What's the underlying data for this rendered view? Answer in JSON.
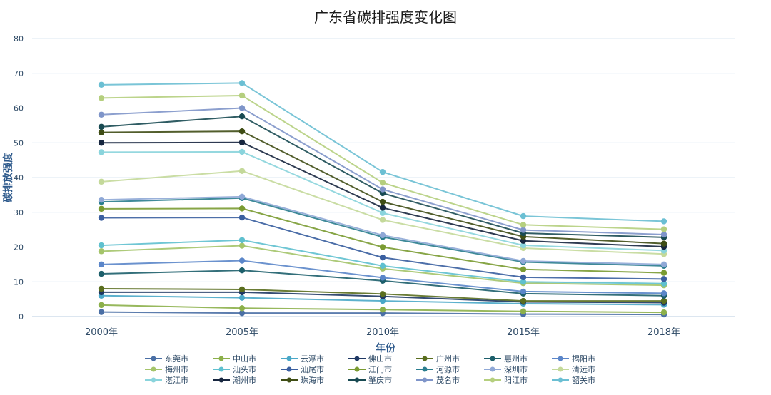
{
  "chart_data": {
    "type": "line",
    "title": "广东省碳排强度变化图",
    "xlabel": "年份",
    "ylabel": "碳排放强度",
    "categories": [
      "2000年",
      "2005年",
      "2010年",
      "2015年",
      "2018年"
    ],
    "ylim": [
      0,
      80
    ],
    "yticks": [
      0,
      10,
      20,
      30,
      40,
      50,
      60,
      70,
      80
    ],
    "grid": true,
    "legend_position": "bottom",
    "series": [
      {
        "name": "东莞市",
        "color": "#4a6fa5",
        "values": [
          1.3,
          1.0,
          1.0,
          0.7,
          0.6
        ]
      },
      {
        "name": "中山市",
        "color": "#8cb04a",
        "values": [
          3.3,
          2.4,
          2.0,
          1.5,
          1.2
        ]
      },
      {
        "name": "云浮市",
        "color": "#4aa8c8",
        "values": [
          6.0,
          5.4,
          4.5,
          3.7,
          3.4
        ]
      },
      {
        "name": "佛山市",
        "color": "#1f3864",
        "values": [
          7.0,
          7.0,
          5.8,
          4.2,
          4.0
        ]
      },
      {
        "name": "广州市",
        "color": "#5a6e1f",
        "values": [
          8.0,
          7.8,
          6.5,
          4.5,
          4.5
        ]
      },
      {
        "name": "惠州市",
        "color": "#1d5f6b",
        "values": [
          12.3,
          13.3,
          10.3,
          6.6,
          6.0
        ]
      },
      {
        "name": "揭阳市",
        "color": "#5b86c9",
        "values": [
          15.0,
          16.1,
          11.2,
          7.2,
          6.7
        ]
      },
      {
        "name": "梅州市",
        "color": "#a4c46a",
        "values": [
          18.8,
          20.4,
          13.8,
          9.6,
          9.0
        ]
      },
      {
        "name": "汕头市",
        "color": "#5fc0cf",
        "values": [
          20.5,
          22.0,
          14.6,
          10.0,
          9.5
        ]
      },
      {
        "name": "汕尾市",
        "color": "#3a5fa0",
        "values": [
          28.4,
          28.5,
          17.0,
          11.3,
          10.8
        ]
      },
      {
        "name": "江门市",
        "color": "#7a9b32",
        "values": [
          31.0,
          31.1,
          20.0,
          13.6,
          12.6
        ]
      },
      {
        "name": "河源市",
        "color": "#2a7d8e",
        "values": [
          33.0,
          34.1,
          22.9,
          15.7,
          14.6
        ]
      },
      {
        "name": "深圳市",
        "color": "#8fa8d6",
        "values": [
          33.6,
          34.5,
          23.4,
          16.0,
          15.0
        ]
      },
      {
        "name": "清远市",
        "color": "#c4d99a",
        "values": [
          38.8,
          41.9,
          27.8,
          19.7,
          18.0
        ]
      },
      {
        "name": "湛江市",
        "color": "#8ad4dc",
        "values": [
          47.3,
          47.4,
          29.8,
          20.5,
          19.0
        ]
      },
      {
        "name": "潮州市",
        "color": "#17263f",
        "values": [
          50.0,
          50.1,
          31.3,
          21.8,
          20.1
        ]
      },
      {
        "name": "珠海市",
        "color": "#3f4d15",
        "values": [
          53.0,
          53.3,
          33.0,
          23.0,
          21.0
        ]
      },
      {
        "name": "肇庆市",
        "color": "#184a52",
        "values": [
          54.6,
          57.6,
          35.5,
          24.0,
          22.8
        ]
      },
      {
        "name": "茂名市",
        "color": "#7f95c9",
        "values": [
          58.1,
          60.0,
          36.6,
          24.9,
          23.6
        ]
      },
      {
        "name": "阳江市",
        "color": "#b5cf7e",
        "values": [
          62.9,
          63.6,
          38.5,
          26.4,
          25.1
        ]
      },
      {
        "name": "韶关市",
        "color": "#6bbfd3",
        "values": [
          66.7,
          67.2,
          41.6,
          28.9,
          27.4
        ]
      }
    ]
  }
}
